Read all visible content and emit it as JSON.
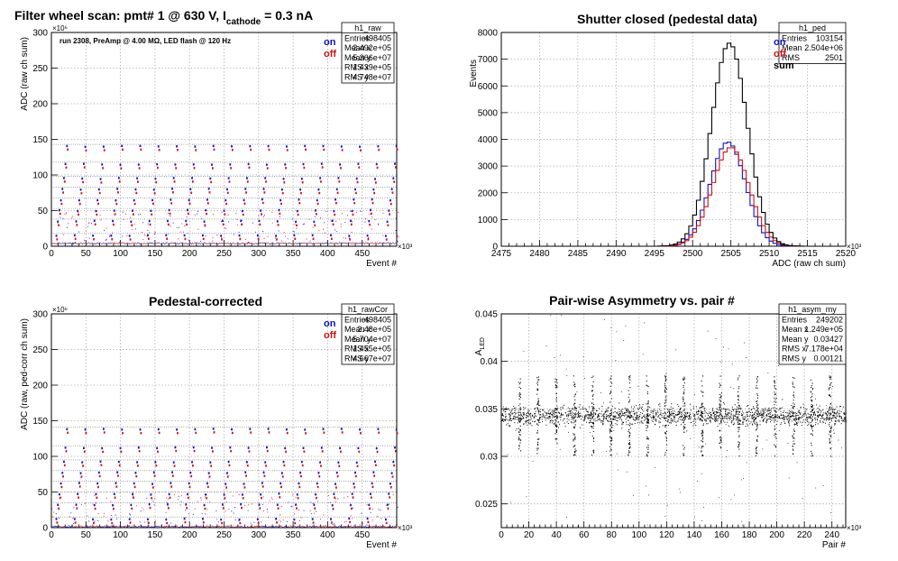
{
  "figure": {
    "pad_titles": [
      {
        "segments": [
          "Filter wheel scan: pmt#   1 @   630 V, I",
          "cathode",
          " = 0.3 nA"
        ]
      },
      {
        "segments": [
          "Shutter closed (pedestal data)"
        ]
      },
      {
        "segments": [
          "Pedestal-corrected"
        ]
      },
      {
        "segments": [
          "Pair-wise Asymmetry vs. pair #"
        ]
      }
    ],
    "legend": {
      "on": "on",
      "off": "off",
      "sum": "sum"
    },
    "colors": {
      "on": "#1010c8",
      "off": "#d01010",
      "sum": "#000000"
    }
  },
  "chart_data": [
    {
      "type": "scatter",
      "title": "Filter wheel scan: pmt#   1 @   630 V, I cathode = 0.3 nA",
      "annotation": "run 2308, PreAmp @ 4.00 MΩ, LED flash @  120 Hz",
      "xlabel": "Event #",
      "ylabel": "ADC (raw ch sum)",
      "x_multiplier": "×10³",
      "y_multiplier": "×10⁶",
      "xlim": [
        0,
        500
      ],
      "ylim": [
        0,
        300
      ],
      "x_ticks": [
        0,
        50,
        100,
        150,
        200,
        250,
        300,
        350,
        400,
        450
      ],
      "y_ticks": [
        0,
        50,
        100,
        150,
        200,
        250,
        300
      ],
      "grid": true,
      "legend": [
        "on",
        "off"
      ],
      "levels": [
        3,
        15,
        35,
        50,
        65,
        80,
        95,
        115,
        140
      ],
      "period": 26.5,
      "stats": {
        "name": "h1_raw",
        "rows": [
          [
            "Entries",
            "498405"
          ],
          [
            "Mean x",
            "2.492e+05"
          ],
          [
            "Mean y",
            "5.366e+07"
          ],
          [
            "RMS x",
            "1.439e+05"
          ],
          [
            "RMS y",
            "4.748e+07"
          ]
        ]
      }
    },
    {
      "type": "line",
      "title": "Shutter closed (pedestal data)",
      "xlabel": "ADC (raw ch sum)",
      "ylabel": "Events",
      "x_multiplier": "×10³",
      "xlim": [
        2475,
        2520
      ],
      "ylim": [
        0,
        8000
      ],
      "x_ticks": [
        2475,
        2480,
        2485,
        2490,
        2495,
        2500,
        2505,
        2510,
        2515,
        2520
      ],
      "y_ticks": [
        0,
        1000,
        2000,
        3000,
        4000,
        5000,
        6000,
        7000,
        8000
      ],
      "grid": true,
      "series": [
        {
          "name": "on",
          "peak_x": 2504.6,
          "peak": 3900,
          "sigma": 2.3
        },
        {
          "name": "off",
          "peak_x": 2505.0,
          "peak": 3700,
          "sigma": 2.4
        },
        {
          "name": "sum",
          "peak_x": 2504.8,
          "peak": 7600,
          "sigma": 2.35
        }
      ],
      "stats": {
        "name": "h1_ped",
        "rows": [
          [
            "Entries",
            "103154"
          ],
          [
            "Mean",
            "2.504e+06"
          ],
          [
            "RMS",
            "2501"
          ]
        ]
      }
    },
    {
      "type": "scatter",
      "title": "Pedestal-corrected",
      "xlabel": "Event #",
      "ylabel": "ADC (raw, ped-corr ch sum)",
      "x_multiplier": "×10³",
      "y_multiplier": "×10⁶",
      "xlim": [
        0,
        500
      ],
      "ylim": [
        0,
        300
      ],
      "x_ticks": [
        0,
        50,
        100,
        150,
        200,
        250,
        300,
        350,
        400,
        450
      ],
      "y_ticks": [
        0,
        50,
        100,
        150,
        200,
        250,
        300
      ],
      "grid": true,
      "legend": [
        "on",
        "off"
      ],
      "levels": [
        0.5,
        12,
        32,
        47,
        62,
        77,
        92,
        112,
        138
      ],
      "period": 26.5,
      "stats": {
        "name": "h1_rawCor",
        "rows": [
          [
            "Entries",
            "498405"
          ],
          [
            "Mean x",
            "2.48e+05"
          ],
          [
            "Mean y",
            "5.704e+07"
          ],
          [
            "RMS x",
            "1.455e+05"
          ],
          [
            "RMS y",
            "4.667e+07"
          ]
        ]
      }
    },
    {
      "type": "scatter",
      "title": "Pair-wise Asymmetry vs. pair #",
      "xlabel": "Pair #",
      "ylabel": "A_LED",
      "ylabel_main": "A",
      "ylabel_sub": "LED",
      "x_multiplier": "×10³",
      "xlim": [
        0,
        250
      ],
      "ylim": [
        0.0225,
        0.045
      ],
      "x_ticks": [
        0,
        20,
        40,
        60,
        80,
        100,
        120,
        140,
        160,
        180,
        200,
        220,
        240
      ],
      "y_ticks": [
        0.025,
        0.03,
        0.035,
        0.04,
        0.045
      ],
      "grid": true,
      "band_center": 0.0343,
      "band_halfwidth": 0.0009,
      "spike_period": 13.25,
      "stats": {
        "name": "h1_asym_my",
        "rows": [
          [
            "Entries",
            "249202"
          ],
          [
            "Mean x",
            "1.249e+05"
          ],
          [
            "Mean y",
            "0.03427"
          ],
          [
            "RMS x",
            "7.178e+04"
          ],
          [
            "RMS y",
            "0.00121"
          ]
        ]
      }
    }
  ]
}
